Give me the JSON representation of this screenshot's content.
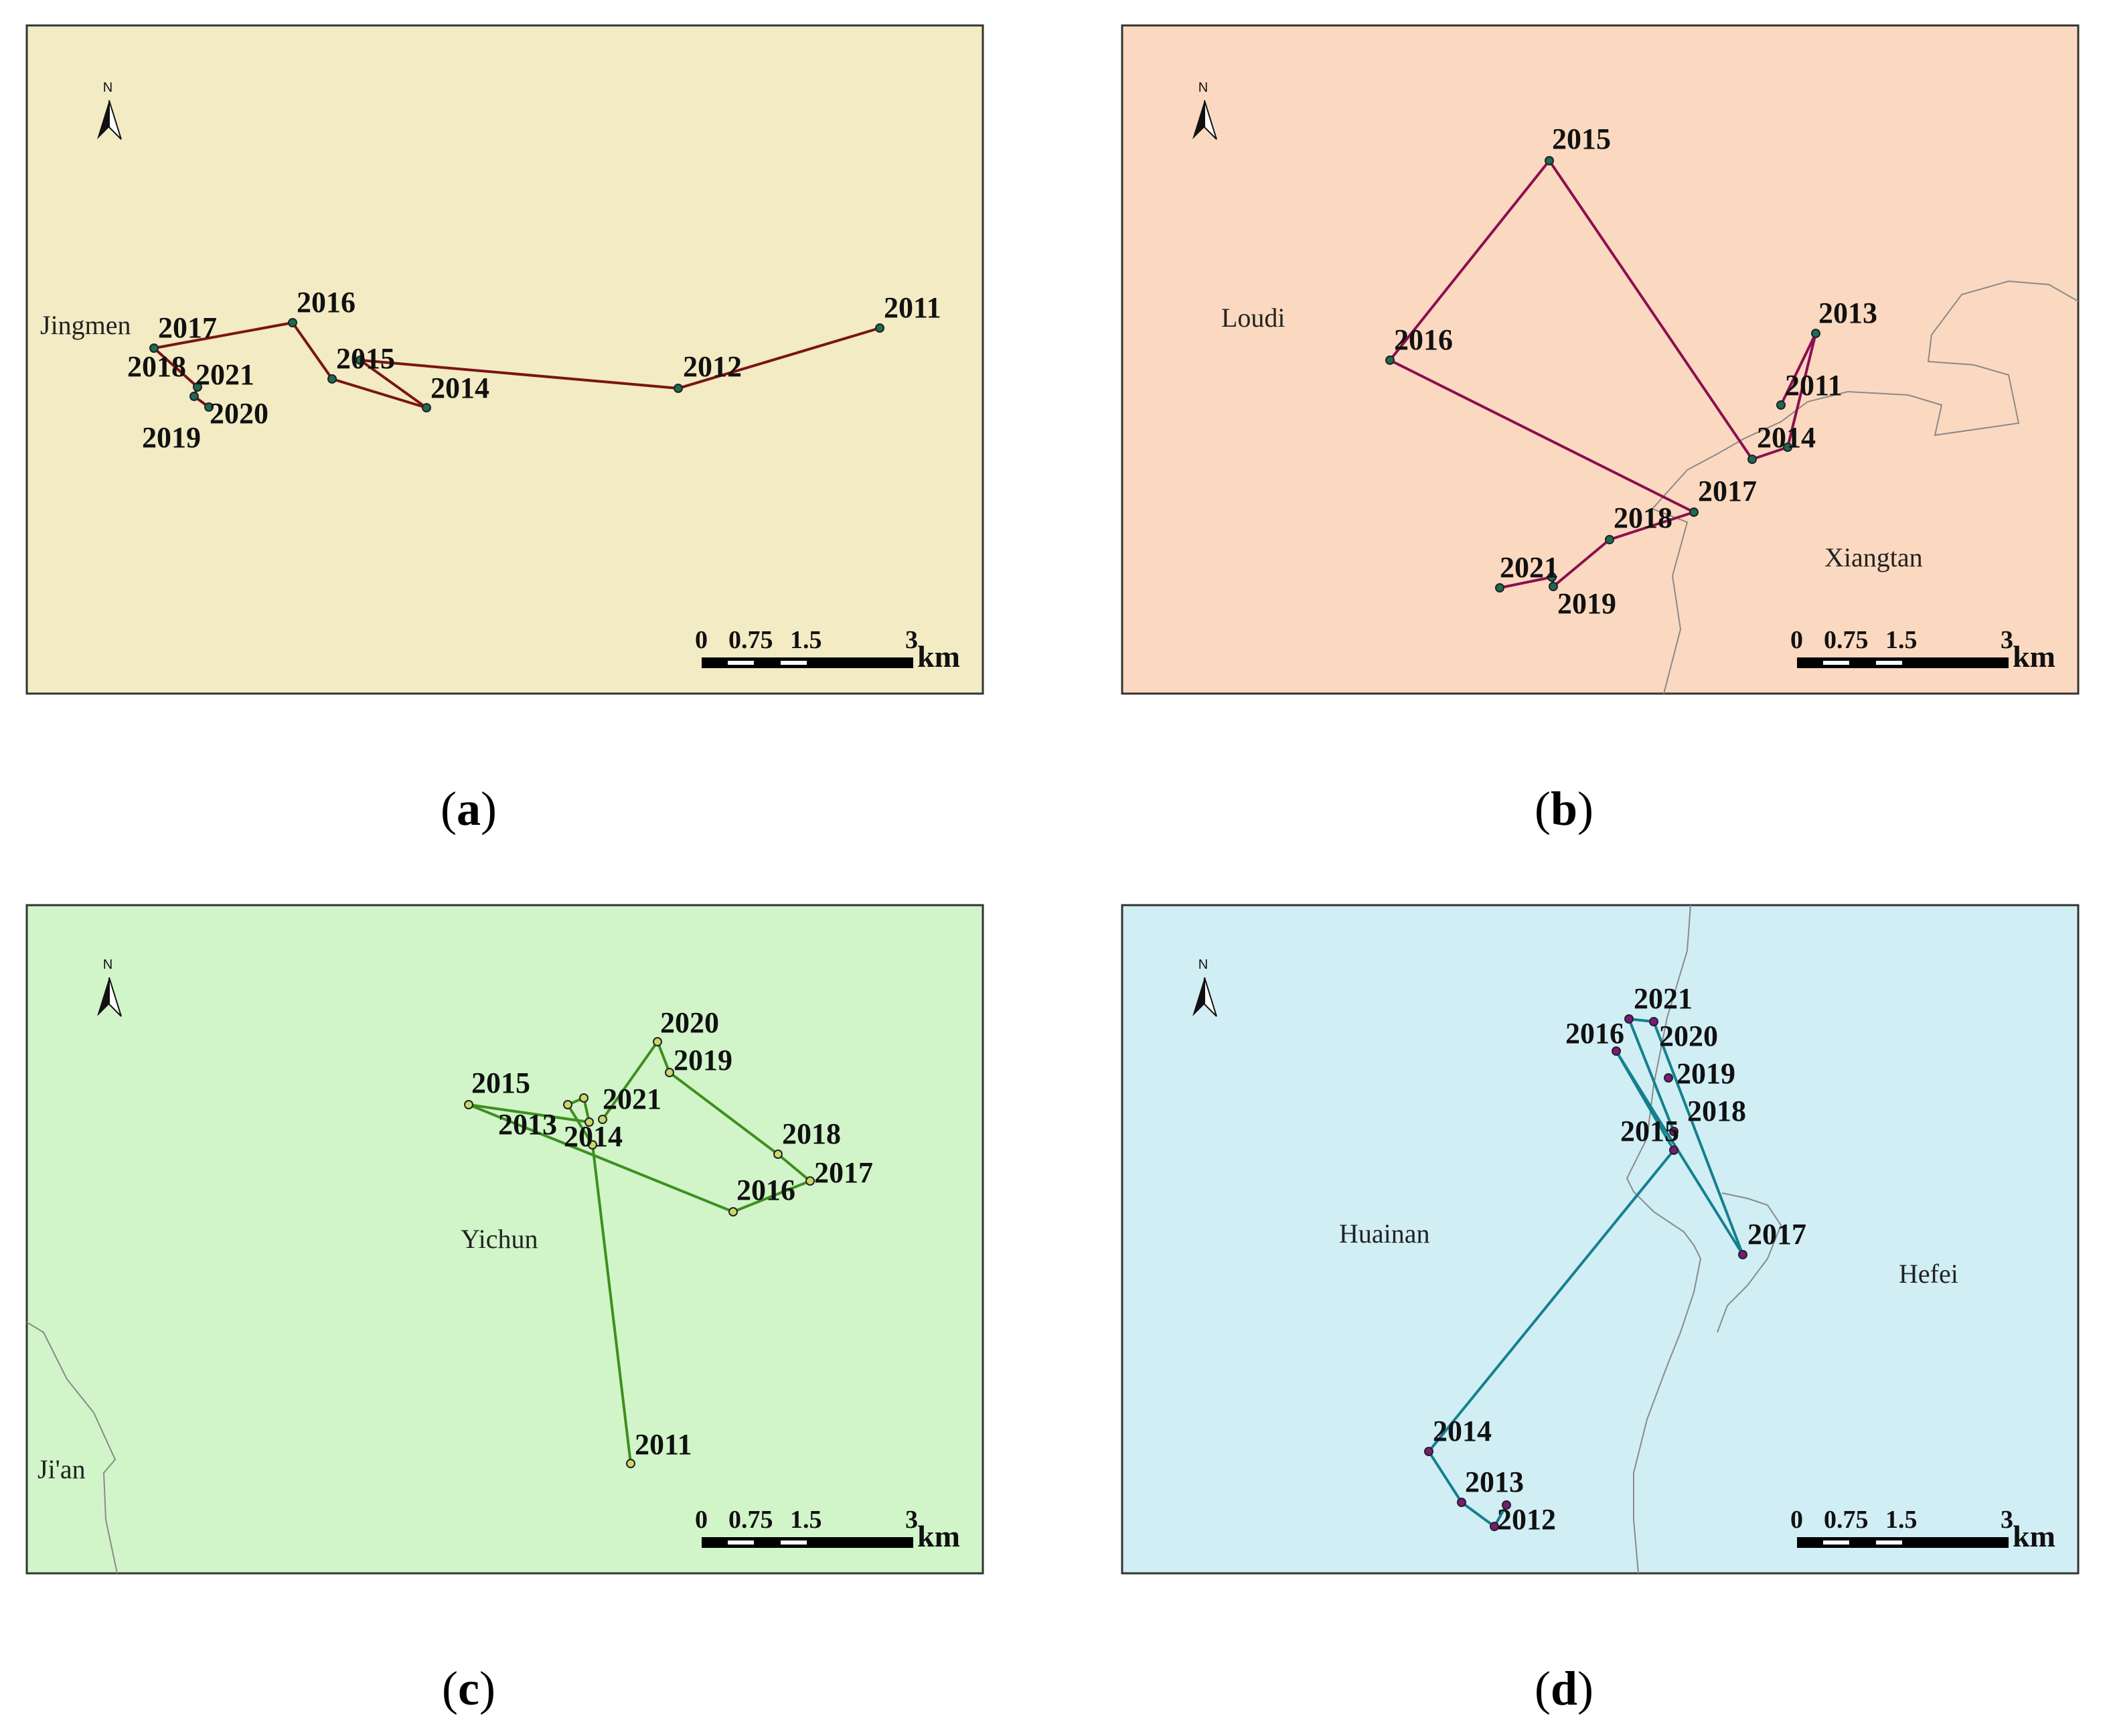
{
  "figure": {
    "panels": [
      {
        "id": "a",
        "caption_letter": "a",
        "background": "#f2ebc4",
        "line_color": "#7a1414",
        "point_color": "#1d6b52",
        "cities": [
          "Jingmen"
        ],
        "years": [
          "2011",
          "2012",
          "2014",
          "2015",
          "2016",
          "2017",
          "2018",
          "2019",
          "2020",
          "2021"
        ]
      },
      {
        "id": "b",
        "caption_letter": "b",
        "background": "#fbd9c0",
        "line_color": "#8b1050",
        "point_color": "#1d6b52",
        "cities": [
          "Loudi",
          "Xiangtan"
        ],
        "years": [
          "2011",
          "2013",
          "2014",
          "2015",
          "2016",
          "2017",
          "2018",
          "2019",
          "2021"
        ]
      },
      {
        "id": "c",
        "caption_letter": "c",
        "background": "#d1f5c9",
        "line_color": "#3f8f1f",
        "point_color": "#c9d86a",
        "cities": [
          "Yichun",
          "Ji'an"
        ],
        "years": [
          "2011",
          "2013",
          "2014",
          "2015",
          "2016",
          "2017",
          "2018",
          "2019",
          "2020",
          "2021"
        ]
      },
      {
        "id": "d",
        "caption_letter": "d",
        "background": "#d1eef5",
        "line_color": "#14808f",
        "point_color": "#7a1a7a",
        "cities": [
          "Huainan",
          "Hefei"
        ],
        "years": [
          "2012",
          "2013",
          "2014",
          "2015",
          "2016",
          "2017",
          "2018",
          "2019",
          "2020",
          "2021"
        ]
      }
    ],
    "scale_bar": {
      "ticks": [
        "0",
        "0.75",
        "1.5",
        "3"
      ],
      "unit": "km"
    },
    "north_arrow_label": "N",
    "caption_open": "(",
    "caption_close": ")"
  }
}
